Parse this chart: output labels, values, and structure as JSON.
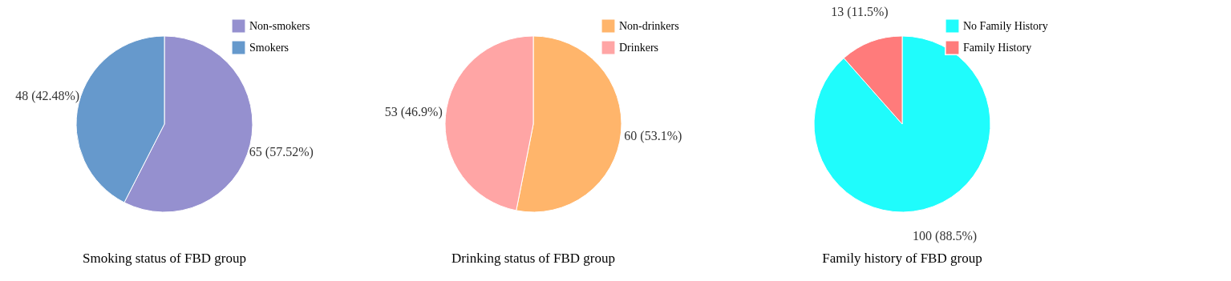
{
  "chart_data": [
    {
      "type": "pie",
      "title": "Smoking status of FBD group",
      "categories": [
        "Non-smokers",
        "Smokers"
      ],
      "values": [
        65,
        48
      ],
      "colors": [
        "#9590cf",
        "#6699cc"
      ],
      "value_labels": [
        "65 (57.52%)",
        "48 (42.48%)"
      ],
      "legend": "top right"
    },
    {
      "type": "pie",
      "title": "Drinking  status of FBD group",
      "categories": [
        "Non-drinkers",
        "Drinkers"
      ],
      "values": [
        60,
        53
      ],
      "colors": [
        "#ffb56b",
        "#ffa5a5"
      ],
      "value_labels": [
        "60 (53.1%)",
        "53 (46.9%)"
      ],
      "legend": "top right"
    },
    {
      "type": "pie",
      "title": "Family history of FBD group",
      "categories": [
        "No Family History",
        "Family History"
      ],
      "values": [
        100,
        13
      ],
      "colors": [
        "#1ffcfc",
        "#ff7b7b"
      ],
      "value_labels": [
        "100 (88.5%)",
        "13 (11.5%)"
      ],
      "legend": "top right"
    }
  ]
}
